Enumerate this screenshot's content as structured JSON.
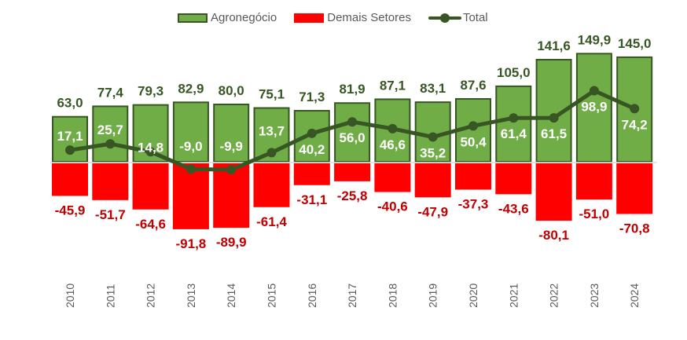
{
  "chart_data": {
    "type": "bar",
    "title": "",
    "xlabel": "",
    "ylabel": "",
    "ylim": [
      -100,
      160
    ],
    "grid": false,
    "legend_position": "top-center",
    "categories": [
      "2010",
      "2011",
      "2012",
      "2013",
      "2014",
      "2015",
      "2016",
      "2017",
      "2018",
      "2019",
      "2020",
      "2021",
      "2022",
      "2023",
      "2024"
    ],
    "series": [
      {
        "name": "Agronegócio",
        "type": "bar",
        "color": "#70ad47",
        "border_color": "#375623",
        "label_color": "#375623",
        "values": [
          63.0,
          77.4,
          79.3,
          82.9,
          80.0,
          75.1,
          71.3,
          81.9,
          87.1,
          83.1,
          87.6,
          105.0,
          141.6,
          149.9,
          145.0
        ],
        "labels": [
          "63,0",
          "77,4",
          "79,3",
          "82,9",
          "80,0",
          "75,1",
          "71,3",
          "81,9",
          "87,1",
          "83,1",
          "87,6",
          "105,0",
          "141,6",
          "149,9",
          "145,0"
        ]
      },
      {
        "name": "Demais Setores",
        "type": "bar",
        "color": "#ff0000",
        "label_color": "#c00000",
        "values": [
          -45.9,
          -51.7,
          -64.6,
          -91.8,
          -89.9,
          -61.4,
          -31.1,
          -25.8,
          -40.6,
          -47.9,
          -37.3,
          -43.6,
          -80.1,
          -51.0,
          -70.8
        ],
        "labels": [
          "-45,9",
          "-51,7",
          "-64,6",
          "-91,8",
          "-89,9",
          "-61,4",
          "-31,1",
          "-25,8",
          "-40,6",
          "-47,9",
          "-37,3",
          "-43,6",
          "-80,1",
          "-51,0",
          "-70,8"
        ]
      },
      {
        "name": "Total",
        "type": "line",
        "color": "#375623",
        "label_color": "#ffffff",
        "values": [
          17.1,
          25.7,
          14.8,
          -9.0,
          -9.9,
          13.7,
          40.2,
          56.0,
          46.6,
          35.2,
          50.4,
          61.4,
          61.5,
          98.9,
          74.2
        ],
        "labels": [
          "17,1",
          "25,7",
          "14,8",
          "-9,0",
          "-9,9",
          "13,7",
          "40,2",
          "56,0",
          "46,6",
          "35,2",
          "50,4",
          "61,4",
          "61,5",
          "98,9",
          "74,2"
        ]
      }
    ]
  },
  "legend": {
    "items": [
      {
        "label": "Agronegócio"
      },
      {
        "label": "Demais Setores"
      },
      {
        "label": "Total"
      }
    ]
  }
}
